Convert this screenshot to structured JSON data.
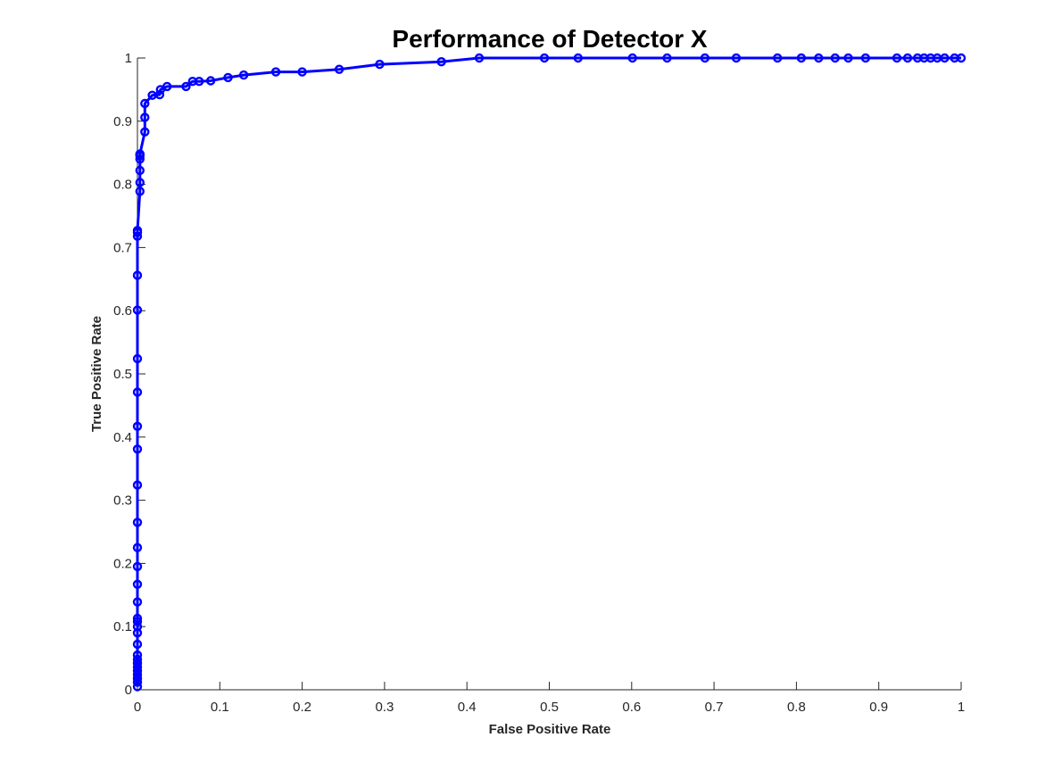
{
  "chart_data": {
    "type": "line",
    "title": "Performance of Detector X",
    "xlabel": "False Positive Rate",
    "ylabel": "True Positive Rate",
    "xlim": [
      0,
      1
    ],
    "ylim": [
      0,
      1
    ],
    "grid": false,
    "legend": "none",
    "marker": "circle",
    "x_ticks": [
      0,
      0.1,
      0.2,
      0.3,
      0.4,
      0.5,
      0.6,
      0.7,
      0.8,
      0.9,
      1
    ],
    "x_tick_labels": [
      "0",
      "0.1",
      "0.2",
      "0.3",
      "0.4",
      "0.5",
      "0.6",
      "0.7",
      "0.8",
      "0.9",
      "1"
    ],
    "y_ticks": [
      0,
      0.1,
      0.2,
      0.3,
      0.4,
      0.5,
      0.6,
      0.7,
      0.8,
      0.9,
      1
    ],
    "y_tick_labels": [
      "0",
      "0.1",
      "0.2",
      "0.3",
      "0.4",
      "0.5",
      "0.6",
      "0.7",
      "0.8",
      "0.9",
      "1"
    ],
    "color": "#0000ff",
    "series": [
      {
        "x": [
          0,
          0,
          0,
          0,
          0,
          0,
          0,
          0,
          0,
          0,
          0,
          0,
          0,
          0,
          0,
          0,
          0,
          0,
          0,
          0,
          0,
          0,
          0,
          0,
          0,
          0,
          0,
          0,
          0,
          0.003,
          0.003,
          0.003,
          0.003,
          0.003,
          0.003,
          0.003,
          0.009,
          0.009,
          0.009,
          0.018,
          0.027,
          0.028,
          0.036,
          0.059,
          0.067,
          0.075,
          0.089,
          0.11,
          0.129,
          0.168,
          0.2,
          0.245,
          0.294,
          0.369,
          0.415,
          0.494,
          0.535,
          0.601,
          0.643,
          0.689,
          0.727,
          0.777,
          0.806,
          0.827,
          0.847,
          0.863,
          0.884,
          0.922,
          0.935,
          0.947,
          0.955,
          0.963,
          0.971,
          0.98,
          0.992,
          1
        ],
        "y": [
          0.005,
          0.012,
          0.018,
          0.024,
          0.03,
          0.036,
          0.042,
          0.048,
          0.055,
          0.072,
          0.09,
          0.1,
          0.108,
          0.113,
          0.139,
          0.167,
          0.195,
          0.225,
          0.265,
          0.324,
          0.381,
          0.417,
          0.471,
          0.524,
          0.601,
          0.656,
          0.718,
          0.724,
          0.727,
          0.789,
          0.803,
          0.822,
          0.84,
          0.845,
          0.847,
          0.848,
          0.883,
          0.906,
          0.928,
          0.941,
          0.942,
          0.95,
          0.955,
          0.955,
          0.963,
          0.963,
          0.964,
          0.969,
          0.973,
          0.978,
          0.978,
          0.982,
          0.99,
          0.994,
          1,
          1,
          1,
          1,
          1,
          1,
          1,
          1,
          1,
          1,
          1,
          1,
          1,
          1,
          1,
          1,
          1,
          1,
          1,
          1,
          1,
          1
        ]
      }
    ]
  }
}
